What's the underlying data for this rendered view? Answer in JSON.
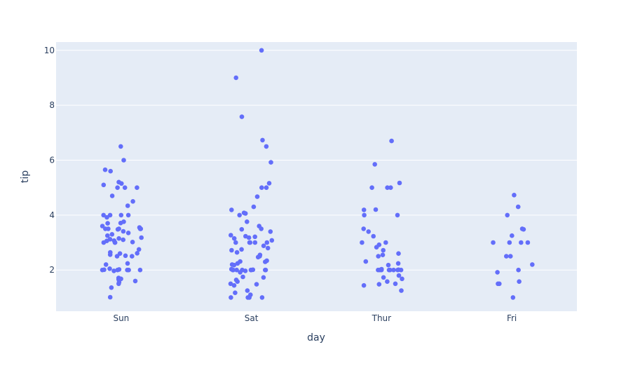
{
  "chart_data": {
    "type": "scatter",
    "xlabel": "day",
    "ylabel": "tip",
    "categories": [
      "Sun",
      "Sat",
      "Thur",
      "Fri"
    ],
    "yticks": [
      2,
      4,
      6,
      8,
      10
    ],
    "ylim": [
      0.5,
      10.3
    ],
    "grid": true,
    "colors": {
      "plot_bg": "#e5ecf6",
      "point": "#636efa",
      "text": "#2a3f5f"
    },
    "series": [
      {
        "category": "Sun",
        "values": [
          6.5,
          6.0,
          5.65,
          5.6,
          5.2,
          5.15,
          5.1,
          5.0,
          5.0,
          5.0,
          4.7,
          4.5,
          4.34,
          4.0,
          4.0,
          4.0,
          4.0,
          3.92,
          3.76,
          3.71,
          3.7,
          3.6,
          3.55,
          3.5,
          3.5,
          3.5,
          3.5,
          3.5,
          3.48,
          3.41,
          3.35,
          3.3,
          3.25,
          3.18,
          3.15,
          3.12,
          3.1,
          3.07,
          3.06,
          3.02,
          3.0,
          3.0,
          3.0,
          2.75,
          2.64,
          2.61,
          2.6,
          2.56,
          2.52,
          2.5,
          2.5,
          2.24,
          2.2,
          2.05,
          2.02,
          2.01,
          2.0,
          2.0,
          2.0,
          2.0,
          2.0,
          1.97,
          1.71,
          1.68,
          1.66,
          1.6,
          1.56,
          1.5,
          1.36,
          1.01
        ]
      },
      {
        "category": "Sat",
        "values": [
          10.0,
          9.0,
          7.58,
          6.73,
          6.5,
          5.92,
          5.16,
          5.0,
          5.0,
          4.67,
          4.3,
          4.19,
          4.08,
          4.06,
          4.0,
          3.76,
          3.6,
          3.5,
          3.48,
          3.4,
          3.27,
          3.23,
          3.21,
          3.18,
          3.15,
          3.08,
          3.0,
          3.0,
          3.0,
          3.0,
          3.0,
          2.88,
          2.8,
          2.75,
          2.72,
          2.64,
          2.55,
          2.5,
          2.47,
          2.34,
          2.31,
          2.3,
          2.24,
          2.2,
          2.18,
          2.03,
          2.01,
          2.0,
          2.0,
          2.0,
          2.0,
          2.0,
          2.0,
          2.0,
          2.0,
          1.97,
          1.92,
          1.75,
          1.73,
          1.64,
          1.58,
          1.5,
          1.48,
          1.44,
          1.25,
          1.17,
          1.1,
          1.0,
          1.0,
          1.0,
          1.0
        ]
      },
      {
        "category": "Thur",
        "values": [
          6.7,
          5.85,
          5.17,
          5.0,
          5.0,
          5.0,
          4.2,
          4.19,
          4.0,
          4.0,
          3.5,
          3.4,
          3.23,
          3.0,
          3.0,
          2.92,
          2.83,
          2.72,
          2.6,
          2.55,
          2.5,
          2.31,
          2.24,
          2.18,
          2.03,
          2.01,
          2.0,
          2.0,
          2.0,
          2.0,
          2.0,
          2.0,
          2.0,
          2.0,
          1.8,
          1.73,
          1.68,
          1.58,
          1.5,
          1.48,
          1.44,
          1.25
        ]
      },
      {
        "category": "Fri",
        "values": [
          4.73,
          4.3,
          4.0,
          3.5,
          3.48,
          3.25,
          3.0,
          3.0,
          3.0,
          3.0,
          2.5,
          2.5,
          2.2,
          2.0,
          1.92,
          1.58,
          1.5,
          1.5,
          1.0
        ]
      }
    ]
  }
}
